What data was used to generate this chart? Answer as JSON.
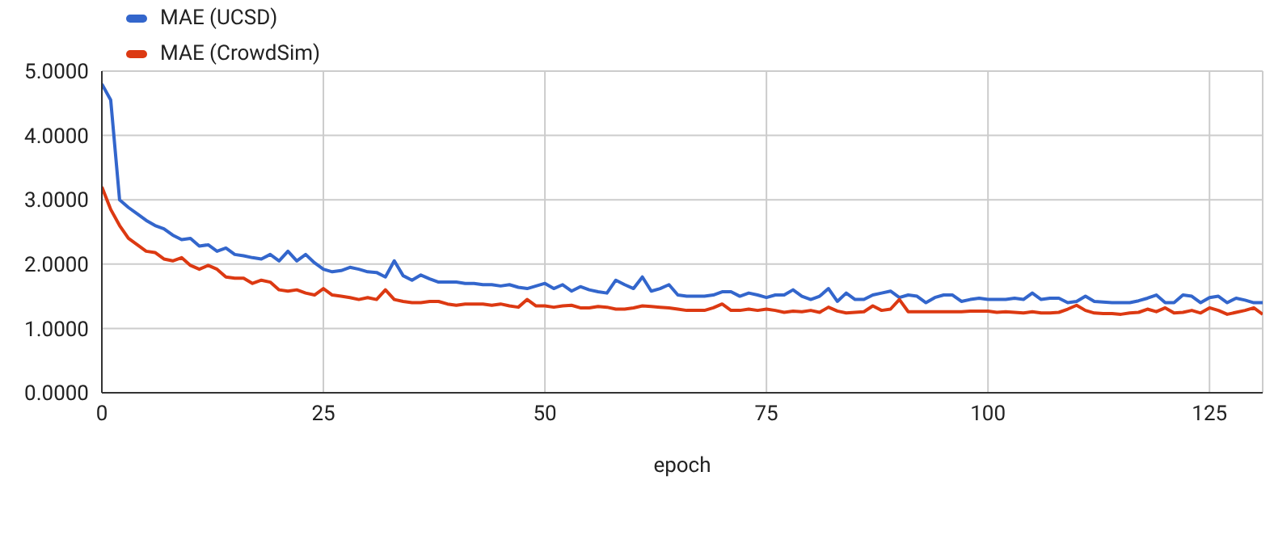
{
  "chart_data": {
    "type": "line",
    "xlabel": "epoch",
    "x": [
      0,
      1,
      2,
      3,
      4,
      5,
      6,
      7,
      8,
      9,
      10,
      11,
      12,
      13,
      14,
      15,
      16,
      17,
      18,
      19,
      20,
      21,
      22,
      23,
      24,
      25,
      26,
      27,
      28,
      29,
      30,
      31,
      32,
      33,
      34,
      35,
      36,
      37,
      38,
      39,
      40,
      41,
      42,
      43,
      44,
      45,
      46,
      47,
      48,
      49,
      50,
      51,
      52,
      53,
      54,
      55,
      56,
      57,
      58,
      59,
      60,
      61,
      62,
      63,
      64,
      65,
      66,
      67,
      68,
      69,
      70,
      71,
      72,
      73,
      74,
      75,
      76,
      77,
      78,
      79,
      80,
      81,
      82,
      83,
      84,
      85,
      86,
      87,
      88,
      89,
      90,
      91,
      92,
      93,
      94,
      95,
      96,
      97,
      98,
      99,
      100,
      101,
      102,
      103,
      104,
      105,
      106,
      107,
      108,
      109,
      110,
      111,
      112,
      113,
      114,
      115,
      116,
      117,
      118,
      119,
      120,
      121,
      122,
      123,
      124,
      125,
      126,
      127,
      128,
      129,
      130,
      131
    ],
    "series": [
      {
        "name": "MAE (UCSD)",
        "color": "#3366cc",
        "values": [
          4.8,
          4.55,
          3.0,
          2.88,
          2.78,
          2.68,
          2.6,
          2.55,
          2.45,
          2.38,
          2.4,
          2.28,
          2.3,
          2.2,
          2.25,
          2.15,
          2.13,
          2.1,
          2.08,
          2.15,
          2.05,
          2.2,
          2.05,
          2.15,
          2.02,
          1.92,
          1.88,
          1.9,
          1.95,
          1.92,
          1.88,
          1.87,
          1.8,
          2.05,
          1.82,
          1.75,
          1.83,
          1.77,
          1.72,
          1.72,
          1.72,
          1.7,
          1.7,
          1.68,
          1.68,
          1.66,
          1.68,
          1.64,
          1.62,
          1.66,
          1.7,
          1.62,
          1.68,
          1.58,
          1.65,
          1.6,
          1.57,
          1.55,
          1.75,
          1.68,
          1.62,
          1.8,
          1.58,
          1.62,
          1.68,
          1.52,
          1.5,
          1.5,
          1.5,
          1.52,
          1.57,
          1.57,
          1.5,
          1.55,
          1.52,
          1.48,
          1.52,
          1.52,
          1.6,
          1.5,
          1.45,
          1.5,
          1.62,
          1.42,
          1.55,
          1.45,
          1.45,
          1.52,
          1.55,
          1.58,
          1.48,
          1.52,
          1.5,
          1.4,
          1.48,
          1.52,
          1.52,
          1.42,
          1.45,
          1.47,
          1.45,
          1.45,
          1.45,
          1.47,
          1.45,
          1.55,
          1.45,
          1.47,
          1.47,
          1.4,
          1.42,
          1.5,
          1.42,
          1.41,
          1.4,
          1.4,
          1.4,
          1.43,
          1.47,
          1.52,
          1.4,
          1.4,
          1.52,
          1.5,
          1.4,
          1.48,
          1.5,
          1.4,
          1.47,
          1.44,
          1.4,
          1.4
        ]
      },
      {
        "name": "MAE (CrowdSim)",
        "color": "#dc3912",
        "values": [
          3.2,
          2.85,
          2.6,
          2.4,
          2.3,
          2.2,
          2.18,
          2.08,
          2.05,
          2.1,
          1.98,
          1.92,
          1.98,
          1.92,
          1.8,
          1.78,
          1.78,
          1.7,
          1.75,
          1.72,
          1.6,
          1.58,
          1.6,
          1.55,
          1.52,
          1.62,
          1.52,
          1.5,
          1.48,
          1.45,
          1.48,
          1.45,
          1.6,
          1.45,
          1.42,
          1.4,
          1.4,
          1.42,
          1.42,
          1.38,
          1.36,
          1.38,
          1.38,
          1.38,
          1.36,
          1.38,
          1.35,
          1.33,
          1.45,
          1.35,
          1.35,
          1.33,
          1.35,
          1.36,
          1.32,
          1.32,
          1.34,
          1.33,
          1.3,
          1.3,
          1.32,
          1.35,
          1.34,
          1.33,
          1.32,
          1.3,
          1.28,
          1.28,
          1.28,
          1.32,
          1.38,
          1.28,
          1.28,
          1.3,
          1.28,
          1.3,
          1.28,
          1.25,
          1.27,
          1.26,
          1.28,
          1.25,
          1.33,
          1.27,
          1.24,
          1.25,
          1.26,
          1.35,
          1.28,
          1.3,
          1.45,
          1.26,
          1.26,
          1.26,
          1.26,
          1.26,
          1.26,
          1.26,
          1.27,
          1.27,
          1.27,
          1.25,
          1.26,
          1.25,
          1.24,
          1.26,
          1.24,
          1.24,
          1.25,
          1.3,
          1.36,
          1.28,
          1.24,
          1.23,
          1.23,
          1.22,
          1.24,
          1.25,
          1.3,
          1.26,
          1.32,
          1.24,
          1.25,
          1.28,
          1.24,
          1.32,
          1.28,
          1.22,
          1.25,
          1.28,
          1.32,
          1.22
        ]
      }
    ],
    "xlim": [
      0,
      131
    ],
    "xticks": [
      0,
      25,
      50,
      75,
      100,
      125
    ],
    "ylim": [
      0,
      5
    ],
    "yticks": [
      {
        "value": 0,
        "label": "0.0000"
      },
      {
        "value": 1,
        "label": "1.0000"
      },
      {
        "value": 2,
        "label": "2.0000"
      },
      {
        "value": 3,
        "label": "3.0000"
      },
      {
        "value": 4,
        "label": "4.0000"
      },
      {
        "value": 5,
        "label": "5.0000"
      }
    ],
    "grid": true,
    "legend": "top",
    "marker": "none",
    "line_style": "solid"
  }
}
